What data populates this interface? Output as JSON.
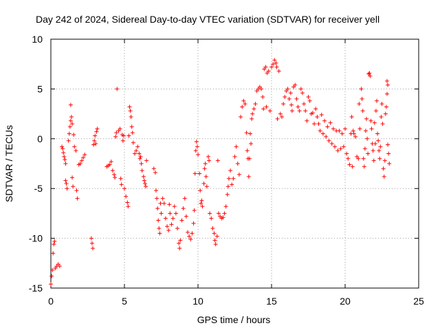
{
  "chart_data": {
    "type": "scatter",
    "title": "Day 242 of 2024, Sidereal Day-to-day VTEC variation (SDTVAR) for receiver yell",
    "xlabel": "GPS time / hours",
    "ylabel": "SDTVAR / TECUs",
    "xlim": [
      0,
      25
    ],
    "ylim": [
      -15,
      10
    ],
    "x_ticks": [
      0,
      5,
      10,
      15,
      20,
      25
    ],
    "x_tick_labels": [
      "0",
      "5",
      "10",
      "15",
      "20",
      "25"
    ],
    "y_ticks": [
      -15,
      -10,
      -5,
      0,
      5,
      10
    ],
    "y_tick_labels": [
      "-15",
      "-10",
      "-5",
      "0",
      "5",
      "10"
    ],
    "grid": true,
    "marker": "+",
    "marker_color": "#ff0000",
    "series": [
      {
        "name": "SDTVAR",
        "points": [
          [
            0.0,
            -14.6
          ],
          [
            0.05,
            -13.8
          ],
          [
            0.1,
            -13.2
          ],
          [
            0.15,
            -11.5
          ],
          [
            0.2,
            -10.6
          ],
          [
            0.25,
            -10.3
          ],
          [
            0.3,
            -13.0
          ],
          [
            0.4,
            -12.8
          ],
          [
            0.5,
            -12.6
          ],
          [
            0.6,
            -12.8
          ],
          [
            0.75,
            -0.8
          ],
          [
            0.8,
            -1.0
          ],
          [
            0.85,
            -1.4
          ],
          [
            0.9,
            -1.8
          ],
          [
            0.95,
            -2.1
          ],
          [
            1.0,
            -2.5
          ],
          [
            1.0,
            -4.2
          ],
          [
            1.05,
            -4.5
          ],
          [
            1.1,
            -5.0
          ],
          [
            1.2,
            -0.2
          ],
          [
            1.25,
            0.5
          ],
          [
            1.3,
            1.2
          ],
          [
            1.35,
            1.8
          ],
          [
            1.35,
            3.4
          ],
          [
            1.4,
            2.2
          ],
          [
            1.45,
            1.5
          ],
          [
            1.45,
            -3.9
          ],
          [
            1.5,
            -4.8
          ],
          [
            1.55,
            0.4
          ],
          [
            1.6,
            -0.8
          ],
          [
            1.7,
            -1.2
          ],
          [
            1.75,
            -5.2
          ],
          [
            1.8,
            -6.0
          ],
          [
            1.9,
            -2.6
          ],
          [
            2.0,
            -2.5
          ],
          [
            2.1,
            -2.2
          ],
          [
            2.2,
            -1.9
          ],
          [
            2.3,
            -1.6
          ],
          [
            2.75,
            -10.0
          ],
          [
            2.8,
            -10.5
          ],
          [
            2.85,
            -11.0
          ],
          [
            2.9,
            -0.6
          ],
          [
            2.95,
            -0.2
          ],
          [
            3.0,
            0.3
          ],
          [
            3.05,
            -0.5
          ],
          [
            3.1,
            0.7
          ],
          [
            3.15,
            1.0
          ],
          [
            3.8,
            -2.8
          ],
          [
            3.9,
            -2.7
          ],
          [
            4.0,
            -2.6
          ],
          [
            4.1,
            -2.3
          ],
          [
            4.2,
            -3.2
          ],
          [
            4.3,
            -3.6
          ],
          [
            4.35,
            -3.9
          ],
          [
            4.4,
            0.2
          ],
          [
            4.45,
            0.6
          ],
          [
            4.5,
            5.0
          ],
          [
            4.6,
            0.8
          ],
          [
            4.7,
            1.0
          ],
          [
            4.75,
            -4.0
          ],
          [
            4.8,
            -4.6
          ],
          [
            4.85,
            0.4
          ],
          [
            4.9,
            -0.2
          ],
          [
            4.95,
            0.3
          ],
          [
            5.0,
            -5.0
          ],
          [
            5.1,
            -5.8
          ],
          [
            5.2,
            -6.4
          ],
          [
            5.25,
            -6.8
          ],
          [
            5.3,
            0.3
          ],
          [
            5.35,
            3.2
          ],
          [
            5.4,
            2.8
          ],
          [
            5.45,
            2.2
          ],
          [
            5.5,
            1.2
          ],
          [
            5.55,
            0.6
          ],
          [
            5.6,
            -0.4
          ],
          [
            5.7,
            -1.5
          ],
          [
            5.8,
            -1.2
          ],
          [
            5.9,
            -0.8
          ],
          [
            6.0,
            -1.5
          ],
          [
            6.05,
            -2.0
          ],
          [
            6.1,
            -1.8
          ],
          [
            6.15,
            -2.5
          ],
          [
            6.2,
            -3.2
          ],
          [
            6.3,
            -3.8
          ],
          [
            6.35,
            -4.2
          ],
          [
            6.4,
            -4.5
          ],
          [
            6.45,
            -4.8
          ],
          [
            6.5,
            -2.2
          ],
          [
            7.0,
            -3.0
          ],
          [
            7.1,
            -3.4
          ],
          [
            7.15,
            -5.2
          ],
          [
            7.2,
            -6.0
          ],
          [
            7.25,
            -7.0
          ],
          [
            7.3,
            -8.2
          ],
          [
            7.35,
            -9.0
          ],
          [
            7.4,
            -9.5
          ],
          [
            7.45,
            -6.5
          ],
          [
            7.5,
            -7.5
          ],
          [
            7.6,
            -6.0
          ],
          [
            7.7,
            -6.5
          ],
          [
            7.8,
            -8.0
          ],
          [
            7.9,
            -8.8
          ],
          [
            8.0,
            -9.2
          ],
          [
            8.05,
            -6.6
          ],
          [
            8.1,
            -7.5
          ],
          [
            8.2,
            -8.6
          ],
          [
            8.3,
            -8.0
          ],
          [
            8.4,
            -6.8
          ],
          [
            8.5,
            -7.5
          ],
          [
            8.6,
            -9.0
          ],
          [
            8.7,
            -10.5
          ],
          [
            8.75,
            -11.0
          ],
          [
            8.8,
            -10.2
          ],
          [
            8.9,
            -8.2
          ],
          [
            9.0,
            -7.0
          ],
          [
            9.1,
            -6.0
          ],
          [
            9.2,
            -7.8
          ],
          [
            9.3,
            -9.4
          ],
          [
            9.4,
            -9.8
          ],
          [
            9.5,
            -10.1
          ],
          [
            9.6,
            -9.5
          ],
          [
            9.7,
            -8.5
          ],
          [
            9.75,
            -7.2
          ],
          [
            9.8,
            -3.5
          ],
          [
            9.85,
            -1.2
          ],
          [
            9.9,
            -0.3
          ],
          [
            9.95,
            -0.8
          ],
          [
            10.0,
            -1.6
          ],
          [
            10.1,
            -3.5
          ],
          [
            10.15,
            -5.2
          ],
          [
            10.2,
            -6.5
          ],
          [
            10.25,
            -6.2
          ],
          [
            10.3,
            -6.8
          ],
          [
            10.4,
            -4.5
          ],
          [
            10.45,
            -3.0
          ],
          [
            10.5,
            -2.5
          ],
          [
            10.55,
            -3.8
          ],
          [
            10.6,
            -4.8
          ],
          [
            10.7,
            -1.8
          ],
          [
            10.75,
            -2.2
          ],
          [
            10.8,
            -7.5
          ],
          [
            10.9,
            -8.0
          ],
          [
            11.0,
            -9.0
          ],
          [
            11.1,
            -9.5
          ],
          [
            11.15,
            -10.2
          ],
          [
            11.2,
            -10.6
          ],
          [
            11.3,
            -9.8
          ],
          [
            11.35,
            -2.2
          ],
          [
            11.4,
            -7.5
          ],
          [
            11.5,
            -7.8
          ],
          [
            11.6,
            -8.0
          ],
          [
            11.7,
            -7.9
          ],
          [
            11.8,
            -7.5
          ],
          [
            11.9,
            -6.8
          ],
          [
            12.0,
            -5.6
          ],
          [
            12.05,
            -4.8
          ],
          [
            12.1,
            -4.0
          ],
          [
            12.2,
            -3.2
          ],
          [
            12.3,
            -4.6
          ],
          [
            12.4,
            -4.0
          ],
          [
            12.5,
            -1.8
          ],
          [
            12.6,
            -0.8
          ],
          [
            12.7,
            -2.5
          ],
          [
            12.8,
            -3.6
          ],
          [
            12.9,
            2.2
          ],
          [
            13.0,
            3.2
          ],
          [
            13.1,
            3.8
          ],
          [
            13.2,
            3.5
          ],
          [
            13.3,
            0.6
          ],
          [
            13.35,
            -1.2
          ],
          [
            13.4,
            -2.0
          ],
          [
            13.45,
            -3.8
          ],
          [
            13.5,
            -2.0
          ],
          [
            13.55,
            0.5
          ],
          [
            13.6,
            -0.5
          ],
          [
            13.65,
            2.0
          ],
          [
            13.7,
            2.5
          ],
          [
            13.8,
            3.0
          ],
          [
            13.9,
            3.5
          ],
          [
            14.0,
            4.8
          ],
          [
            14.1,
            5.0
          ],
          [
            14.2,
            5.2
          ],
          [
            14.3,
            5.0
          ],
          [
            14.4,
            4.2
          ],
          [
            14.45,
            3.0
          ],
          [
            14.5,
            7.0
          ],
          [
            14.6,
            7.2
          ],
          [
            14.65,
            3.2
          ],
          [
            14.7,
            6.6
          ],
          [
            14.8,
            6.8
          ],
          [
            14.9,
            2.8
          ],
          [
            15.0,
            7.2
          ],
          [
            15.1,
            7.5
          ],
          [
            15.2,
            7.9
          ],
          [
            15.3,
            7.6
          ],
          [
            15.35,
            7.2
          ],
          [
            15.4,
            2.0
          ],
          [
            15.5,
            6.8
          ],
          [
            15.6,
            2.5
          ],
          [
            15.7,
            2.2
          ],
          [
            15.8,
            3.5
          ],
          [
            15.9,
            4.2
          ],
          [
            16.0,
            4.8
          ],
          [
            16.1,
            5.0
          ],
          [
            16.2,
            4.0
          ],
          [
            16.3,
            4.6
          ],
          [
            16.35,
            3.4
          ],
          [
            16.4,
            2.8
          ],
          [
            16.5,
            5.2
          ],
          [
            16.6,
            5.4
          ],
          [
            16.7,
            4.0
          ],
          [
            16.8,
            3.2
          ],
          [
            16.9,
            2.8
          ],
          [
            17.0,
            5.0
          ],
          [
            17.1,
            4.6
          ],
          [
            17.2,
            3.5
          ],
          [
            17.3,
            2.8
          ],
          [
            17.4,
            1.8
          ],
          [
            17.5,
            4.2
          ],
          [
            17.6,
            3.8
          ],
          [
            17.7,
            2.5
          ],
          [
            17.8,
            2.6
          ],
          [
            17.9,
            1.5
          ],
          [
            18.0,
            3.0
          ],
          [
            18.1,
            2.2
          ],
          [
            18.2,
            1.5
          ],
          [
            18.3,
            0.8
          ],
          [
            18.4,
            2.4
          ],
          [
            18.5,
            0.5
          ],
          [
            18.6,
            1.8
          ],
          [
            18.7,
            0.2
          ],
          [
            18.8,
            1.2
          ],
          [
            18.9,
            -0.2
          ],
          [
            19.0,
            1.6
          ],
          [
            19.1,
            -0.5
          ],
          [
            19.2,
            1.0
          ],
          [
            19.3,
            -0.8
          ],
          [
            19.4,
            0.8
          ],
          [
            19.5,
            -1.2
          ],
          [
            19.6,
            0.8
          ],
          [
            19.7,
            -1.0
          ],
          [
            19.8,
            0.5
          ],
          [
            19.9,
            -0.8
          ],
          [
            20.0,
            1.0
          ],
          [
            20.1,
            -1.5
          ],
          [
            20.2,
            -2.0
          ],
          [
            20.3,
            -2.6
          ],
          [
            20.4,
            0.5
          ],
          [
            20.45,
            2.2
          ],
          [
            20.5,
            -2.8
          ],
          [
            20.55,
            0.8
          ],
          [
            20.6,
            0.5
          ],
          [
            20.7,
            0.2
          ],
          [
            20.8,
            -1.8
          ],
          [
            20.9,
            -2.0
          ],
          [
            20.95,
            3.5
          ],
          [
            21.0,
            1.0
          ],
          [
            21.1,
            5.0
          ],
          [
            21.15,
            4.0
          ],
          [
            21.2,
            2.8
          ],
          [
            21.25,
            -2.0
          ],
          [
            21.3,
            -2.8
          ],
          [
            21.35,
            -1.0
          ],
          [
            21.4,
            0.8
          ],
          [
            21.45,
            2.0
          ],
          [
            21.5,
            0.0
          ],
          [
            21.55,
            -1.5
          ],
          [
            21.6,
            6.5
          ],
          [
            21.65,
            6.6
          ],
          [
            21.7,
            6.3
          ],
          [
            21.75,
            1.8
          ],
          [
            21.8,
            1.0
          ],
          [
            21.85,
            -0.5
          ],
          [
            21.9,
            -1.2
          ],
          [
            21.95,
            -2.2
          ],
          [
            22.0,
            1.6
          ],
          [
            22.05,
            -0.5
          ],
          [
            22.1,
            2.8
          ],
          [
            22.15,
            3.8
          ],
          [
            22.2,
            0.5
          ],
          [
            22.25,
            -0.2
          ],
          [
            22.3,
            -1.2
          ],
          [
            22.35,
            -2.0
          ],
          [
            22.4,
            -0.8
          ],
          [
            22.45,
            2.2
          ],
          [
            22.5,
            3.5
          ],
          [
            22.55,
            1.5
          ],
          [
            22.6,
            -3.0
          ],
          [
            22.65,
            -3.8
          ],
          [
            22.7,
            -2.2
          ],
          [
            22.75,
            2.5
          ],
          [
            22.8,
            3.2
          ],
          [
            22.85,
            4.5
          ],
          [
            22.9,
            5.4
          ],
          [
            22.95,
            -1.5
          ],
          [
            23.0,
            -2.5
          ],
          [
            22.9,
            -0.6
          ],
          [
            22.85,
            5.8
          ]
        ]
      }
    ]
  }
}
